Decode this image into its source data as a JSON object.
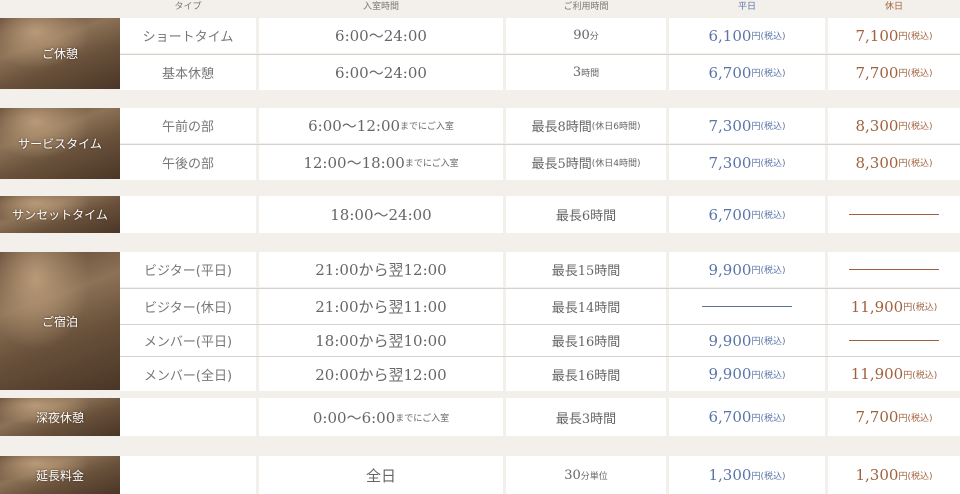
{
  "colors": {
    "weekday": "#5a74a8",
    "holiday": "#a0623e",
    "background": "#f3f0eb"
  },
  "headers": {
    "type": "タイプ",
    "entry": "入室時間",
    "usage": "ご利用時間",
    "weekday": "平日",
    "holiday": "休日"
  },
  "price_unit": "円(税込)",
  "groups": [
    {
      "label": "ご休憩",
      "rows": [
        {
          "type": "ショートタイム",
          "entry": "6:00〜24:00",
          "entry_suffix": "",
          "usage": "90",
          "usage_suffix": "分",
          "weekday": "6,100",
          "holiday": "7,100"
        },
        {
          "type": "基本休憩",
          "entry": "6:00〜24:00",
          "entry_suffix": "",
          "usage": "3",
          "usage_suffix": "時間",
          "weekday": "6,700",
          "holiday": "7,700"
        }
      ]
    },
    {
      "label": "サービスタイム",
      "rows": [
        {
          "type": "午前の部",
          "entry": "6:00〜12:00",
          "entry_suffix": "までにご入室",
          "usage": "最長8時間",
          "usage_suffix": "(休日6時間)",
          "weekday": "7,300",
          "holiday": "8,300"
        },
        {
          "type": "午後の部",
          "entry": "12:00〜18:00",
          "entry_suffix": "までにご入室",
          "usage": "最長5時間",
          "usage_suffix": "(休日4時間)",
          "weekday": "7,300",
          "holiday": "8,300"
        }
      ]
    },
    {
      "label": "サンセットタイム",
      "rows": [
        {
          "type": "",
          "entry": "18:00〜24:00",
          "entry_suffix": "",
          "usage": "最長6時間",
          "usage_suffix": "",
          "weekday": "6,700",
          "holiday": null
        }
      ]
    },
    {
      "label": "ご宿泊",
      "rows": [
        {
          "type": "ビジター(平日)",
          "entry": "21:00から翌12:00",
          "entry_suffix": "",
          "usage": "最長15時間",
          "usage_suffix": "",
          "weekday": "9,900",
          "holiday": null
        },
        {
          "type": "ビジター(休日)",
          "entry": "21:00から翌11:00",
          "entry_suffix": "",
          "usage": "最長14時間",
          "usage_suffix": "",
          "weekday": null,
          "holiday": "11,900"
        },
        {
          "type": "メンバー(平日)",
          "entry": "18:00から翌10:00",
          "entry_suffix": "",
          "usage": "最長16時間",
          "usage_suffix": "",
          "weekday": "9,900",
          "holiday": null
        },
        {
          "type": "メンバー(全日)",
          "entry": "20:00から翌12:00",
          "entry_suffix": "",
          "usage": "最長16時間",
          "usage_suffix": "",
          "weekday": "9,900",
          "holiday": "11,900"
        }
      ]
    },
    {
      "label": "深夜休憩",
      "rows": [
        {
          "type": "",
          "entry": "0:00〜6:00",
          "entry_suffix": "までにご入室",
          "usage": "最長3時間",
          "usage_suffix": "",
          "weekday": "6,700",
          "holiday": "7,700"
        }
      ]
    },
    {
      "label": "延長料金",
      "rows": [
        {
          "type": "",
          "entry": "全日",
          "entry_suffix": "",
          "usage": "30",
          "usage_suffix": "分単位",
          "weekday": "1,300",
          "holiday": "1,300"
        }
      ]
    }
  ]
}
